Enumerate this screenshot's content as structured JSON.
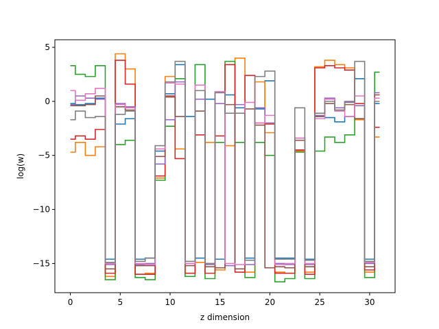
{
  "chart_data": {
    "type": "line",
    "drawstyle": "steps-mid",
    "xlabel": "z dimension",
    "ylabel": "log(w)",
    "xlim": [
      -1.55,
      32.55
    ],
    "ylim": [
      -17.7,
      5.7
    ],
    "grid": false,
    "legend": "none",
    "x_ticks": [
      0,
      5,
      10,
      15,
      20,
      25,
      30
    ],
    "y_ticks": [
      5,
      0,
      -5,
      -10,
      -15
    ],
    "x": [
      0,
      1,
      2,
      3,
      4,
      5,
      6,
      7,
      8,
      9,
      10,
      11,
      12,
      13,
      14,
      15,
      16,
      17,
      18,
      19,
      20,
      21,
      22,
      23,
      24,
      25,
      26,
      27,
      28,
      29,
      30,
      31
    ],
    "series": [
      {
        "color": "#1f77b4",
        "values": [
          -0.2,
          -0.3,
          -0.2,
          0.3,
          -14.6,
          -2.1,
          -1.6,
          -14.6,
          -14.5,
          -4.6,
          0.7,
          3.4,
          -1.4,
          -14.5,
          0.2,
          -14.6,
          0.6,
          -0.6,
          -14.5,
          -0.7,
          1.9,
          -14.5,
          -14.5,
          -4.6,
          -14.6,
          -1.4,
          -1.5,
          -1.9,
          -1.4,
          2.1,
          -14.6,
          -0.2
        ]
      },
      {
        "color": "#ff7f0e",
        "values": [
          -4.7,
          -3.8,
          -5.0,
          -4.2,
          -16.2,
          4.4,
          3.0,
          -16.0,
          -15.9,
          -7.1,
          2.3,
          -4.4,
          -15.9,
          -14.9,
          -3.8,
          -15.6,
          -4.1,
          4.0,
          -15.8,
          1.8,
          -2.9,
          -15.8,
          -15.9,
          -4.6,
          -15.8,
          3.2,
          3.8,
          3.4,
          3.1,
          -1.7,
          -15.8,
          -3.3
        ]
      },
      {
        "color": "#2ca02c",
        "values": [
          3.3,
          2.5,
          2.3,
          3.3,
          -16.5,
          -4.0,
          -3.6,
          -16.3,
          -16.5,
          -7.3,
          -2.3,
          2.1,
          -16.2,
          3.4,
          -16.4,
          -3.8,
          3.7,
          -3.8,
          -16.3,
          -3.8,
          -5.0,
          -16.7,
          -16.4,
          -4.7,
          -16.4,
          -4.6,
          -3.3,
          -3.8,
          -3.1,
          -1.6,
          -16.3,
          2.7
        ]
      },
      {
        "color": "#d62728",
        "values": [
          -3.5,
          -3.2,
          -3.5,
          -2.6,
          -15.9,
          3.8,
          1.6,
          -16.0,
          -16.0,
          -6.9,
          0.5,
          -5.3,
          -15.9,
          -3.1,
          -15.9,
          -3.2,
          3.4,
          -15.8,
          2.4,
          -2.0,
          -2.1,
          -15.9,
          -15.9,
          -4.5,
          -16.0,
          3.1,
          3.3,
          3.1,
          2.9,
          -0.2,
          -15.6,
          -2.4
        ]
      },
      {
        "color": "#9467bd",
        "values": [
          -0.3,
          0.5,
          0.3,
          0.2,
          -15.1,
          -0.2,
          -0.5,
          -15.1,
          -15.0,
          -5.8,
          -1.7,
          1.8,
          -15.0,
          0.2,
          -15.1,
          -0.2,
          -15.2,
          -0.3,
          -15.1,
          -0.6,
          -2.0,
          -15.0,
          -15.1,
          -3.4,
          -15.1,
          -1.3,
          0.3,
          -0.6,
          0.0,
          -0.4,
          -15.0,
          0.8
        ]
      },
      {
        "color": "#8c564b",
        "values": [
          -0.4,
          -0.4,
          -0.3,
          0.5,
          -15.5,
          -0.5,
          -0.8,
          -15.2,
          -15.2,
          -5.1,
          0.4,
          -1.4,
          -15.2,
          -0.9,
          -15.3,
          -15.4,
          -0.3,
          -15.5,
          -0.7,
          -2.2,
          -15.4,
          -15.3,
          -15.4,
          -3.6,
          -15.3,
          -1.4,
          -0.2,
          -0.8,
          -0.3,
          -1.6,
          -15.3,
          0.6
        ]
      },
      {
        "color": "#e377c2",
        "values": [
          1.0,
          0.1,
          0.7,
          1.2,
          -15.0,
          -0.3,
          -0.6,
          -15.0,
          -15.1,
          -4.4,
          1.7,
          1.6,
          -15.0,
          1.5,
          -15.0,
          0.9,
          -15.0,
          -15.1,
          -0.1,
          -2.0,
          -1.3,
          -15.1,
          -15.0,
          -3.4,
          -15.0,
          -1.6,
          0.2,
          -0.9,
          -1.4,
          0.5,
          -14.9,
          0.3
        ]
      },
      {
        "color": "#7f7f7f",
        "values": [
          -1.7,
          -0.9,
          -1.5,
          -1.4,
          -14.9,
          -1.2,
          -0.9,
          -14.8,
          -14.5,
          -4.1,
          1.8,
          3.7,
          -14.8,
          1.0,
          -15.0,
          0.8,
          -1.1,
          -1.1,
          -14.7,
          2.3,
          2.8,
          -14.6,
          -14.6,
          -0.6,
          -14.7,
          -1.1,
          0.0,
          -0.8,
          -0.1,
          3.7,
          -14.8,
          0.0
        ]
      }
    ]
  }
}
